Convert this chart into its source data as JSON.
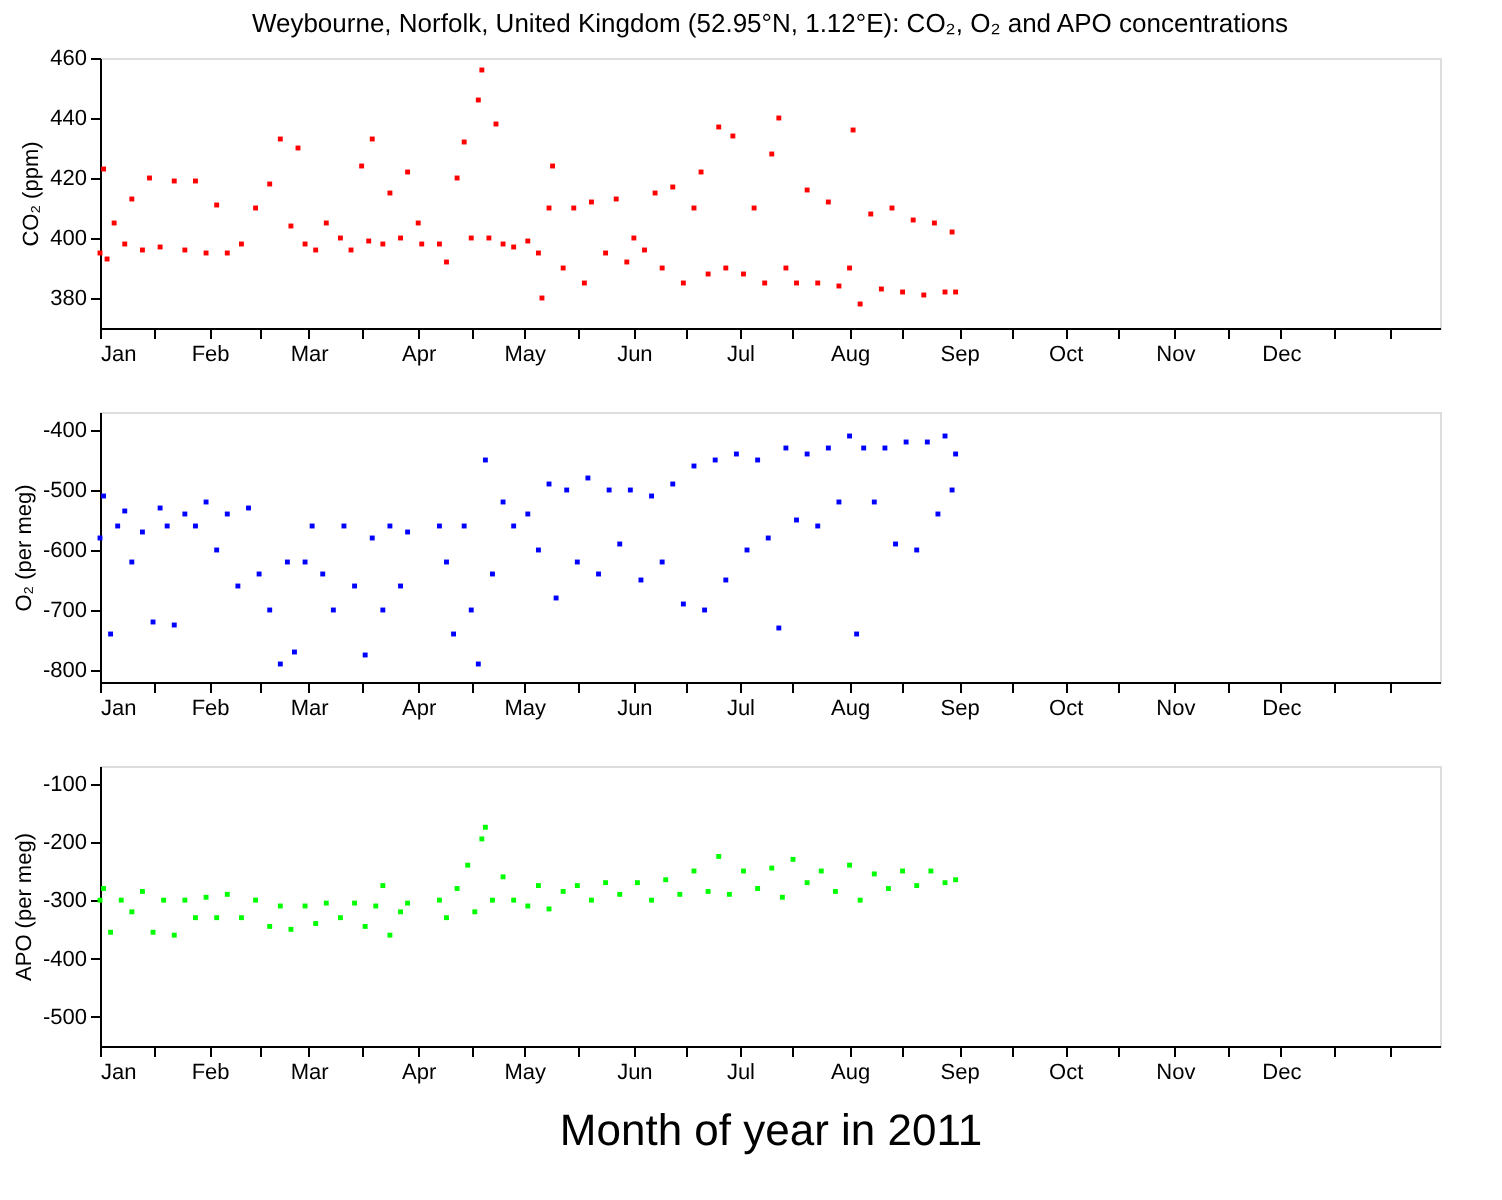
{
  "chart_data": [
    {
      "type": "scatter",
      "title": "Weybourne, Norfolk, United Kingdom (52.95°N, 1.12°E): CO₂, O₂ and APO concentrations",
      "ylabel": "CO₂ (ppm)",
      "marker": "square",
      "grid": false,
      "legend": false,
      "xlim": [
        "2011-01-01",
        "2012-01-15"
      ],
      "xticks": [
        {
          "value": "2011-01-01",
          "label": "Jan"
        },
        {
          "value": "2011-01-16",
          "label": null
        },
        {
          "value": "2011-02-01",
          "label": "Feb"
        },
        {
          "value": "2011-02-15",
          "label": null
        },
        {
          "value": "2011-03-01",
          "label": "Mar"
        },
        {
          "value": "2011-03-16",
          "label": null
        },
        {
          "value": "2011-04-01",
          "label": "Apr"
        },
        {
          "value": "2011-04-16",
          "label": null
        },
        {
          "value": "2011-05-01",
          "label": "May"
        },
        {
          "value": "2011-05-16",
          "label": null
        },
        {
          "value": "2011-06-01",
          "label": "Jun"
        },
        {
          "value": "2011-06-16",
          "label": null
        },
        {
          "value": "2011-07-01",
          "label": "Jul"
        },
        {
          "value": "2011-07-16",
          "label": null
        },
        {
          "value": "2011-08-01",
          "label": "Aug"
        },
        {
          "value": "2011-08-16",
          "label": null
        },
        {
          "value": "2011-09-01",
          "label": "Sep"
        },
        {
          "value": "2011-09-16",
          "label": null
        },
        {
          "value": "2011-10-01",
          "label": "Oct"
        },
        {
          "value": "2011-10-16",
          "label": null
        },
        {
          "value": "2011-11-01",
          "label": "Nov"
        },
        {
          "value": "2011-11-16",
          "label": null
        },
        {
          "value": "2011-12-01",
          "label": "Dec"
        },
        {
          "value": "2011-12-16",
          "label": null
        },
        {
          "value": "2012-01-01",
          "label": null
        }
      ],
      "ylim": [
        370,
        460
      ],
      "yticks": [
        380,
        400,
        420,
        440,
        460
      ],
      "series": [
        {
          "color": "#ff0000",
          "x": [
            "2011-01-01",
            "2011-01-02",
            "2011-01-03",
            "2011-01-05",
            "2011-01-08",
            "2011-01-10",
            "2011-01-13",
            "2011-01-15",
            "2011-01-18",
            "2011-01-22",
            "2011-01-25",
            "2011-01-28",
            "2011-01-31",
            "2011-02-03",
            "2011-02-06",
            "2011-02-10",
            "2011-02-14",
            "2011-02-18",
            "2011-02-21",
            "2011-02-24",
            "2011-02-26",
            "2011-02-28",
            "2011-03-03",
            "2011-03-06",
            "2011-03-10",
            "2011-03-13",
            "2011-03-16",
            "2011-03-18",
            "2011-03-19",
            "2011-03-22",
            "2011-03-24",
            "2011-03-27",
            "2011-03-29",
            "2011-04-01",
            "2011-04-02",
            "2011-04-07",
            "2011-04-09",
            "2011-04-12",
            "2011-04-14",
            "2011-04-16",
            "2011-04-18",
            "2011-04-19",
            "2011-04-21",
            "2011-04-23",
            "2011-04-25",
            "2011-04-28",
            "2011-05-02",
            "2011-05-05",
            "2011-05-06",
            "2011-05-08",
            "2011-05-09",
            "2011-05-12",
            "2011-05-15",
            "2011-05-18",
            "2011-05-20",
            "2011-05-24",
            "2011-05-27",
            "2011-05-30",
            "2011-06-01",
            "2011-06-04",
            "2011-06-07",
            "2011-06-09",
            "2011-06-12",
            "2011-06-15",
            "2011-06-18",
            "2011-06-20",
            "2011-06-22",
            "2011-06-25",
            "2011-06-27",
            "2011-06-29",
            "2011-07-02",
            "2011-07-05",
            "2011-07-08",
            "2011-07-10",
            "2011-07-12",
            "2011-07-14",
            "2011-07-17",
            "2011-07-20",
            "2011-07-23",
            "2011-07-26",
            "2011-07-29",
            "2011-08-01",
            "2011-08-02",
            "2011-08-04",
            "2011-08-07",
            "2011-08-10",
            "2011-08-13",
            "2011-08-16",
            "2011-08-19",
            "2011-08-22",
            "2011-08-25",
            "2011-08-28",
            "2011-08-30",
            "2011-08-31"
          ],
          "values": [
            395,
            423,
            393,
            405,
            398,
            413,
            396,
            420,
            397,
            419,
            396,
            419,
            395,
            411,
            395,
            398,
            410,
            418,
            433,
            404,
            430,
            398,
            396,
            405,
            400,
            396,
            424,
            399,
            433,
            398,
            415,
            400,
            422,
            405,
            398,
            398,
            392,
            420,
            432,
            400,
            446,
            456,
            400,
            438,
            398,
            397,
            399,
            395,
            380,
            410,
            424,
            390,
            410,
            385,
            412,
            395,
            413,
            392,
            400,
            396,
            415,
            390,
            417,
            385,
            410,
            422,
            388,
            437,
            390,
            434,
            388,
            410,
            385,
            428,
            440,
            390,
            385,
            416,
            385,
            412,
            384,
            390,
            436,
            378,
            408,
            383,
            410,
            382,
            406,
            381,
            405,
            382,
            402,
            382
          ]
        }
      ]
    },
    {
      "type": "scatter",
      "ylabel": "O₂ (per meg)",
      "marker": "square",
      "grid": false,
      "legend": false,
      "xlim": [
        "2011-01-01",
        "2012-01-15"
      ],
      "xticks": [
        {
          "value": "2011-01-01",
          "label": "Jan"
        },
        {
          "value": "2011-01-16",
          "label": null
        },
        {
          "value": "2011-02-01",
          "label": "Feb"
        },
        {
          "value": "2011-02-15",
          "label": null
        },
        {
          "value": "2011-03-01",
          "label": "Mar"
        },
        {
          "value": "2011-03-16",
          "label": null
        },
        {
          "value": "2011-04-01",
          "label": "Apr"
        },
        {
          "value": "2011-04-16",
          "label": null
        },
        {
          "value": "2011-05-01",
          "label": "May"
        },
        {
          "value": "2011-05-16",
          "label": null
        },
        {
          "value": "2011-06-01",
          "label": "Jun"
        },
        {
          "value": "2011-06-16",
          "label": null
        },
        {
          "value": "2011-07-01",
          "label": "Jul"
        },
        {
          "value": "2011-07-16",
          "label": null
        },
        {
          "value": "2011-08-01",
          "label": "Aug"
        },
        {
          "value": "2011-08-16",
          "label": null
        },
        {
          "value": "2011-09-01",
          "label": "Sep"
        },
        {
          "value": "2011-09-16",
          "label": null
        },
        {
          "value": "2011-10-01",
          "label": "Oct"
        },
        {
          "value": "2011-10-16",
          "label": null
        },
        {
          "value": "2011-11-01",
          "label": "Nov"
        },
        {
          "value": "2011-11-16",
          "label": null
        },
        {
          "value": "2011-12-01",
          "label": "Dec"
        },
        {
          "value": "2011-12-16",
          "label": null
        },
        {
          "value": "2012-01-01",
          "label": null
        }
      ],
      "ylim": [
        -820,
        -370
      ],
      "yticks": [
        -800,
        -700,
        -600,
        -500,
        -400
      ],
      "series": [
        {
          "color": "#0000ff",
          "x": [
            "2011-01-01",
            "2011-01-02",
            "2011-01-04",
            "2011-01-06",
            "2011-01-08",
            "2011-01-10",
            "2011-01-13",
            "2011-01-16",
            "2011-01-18",
            "2011-01-20",
            "2011-01-22",
            "2011-01-25",
            "2011-01-28",
            "2011-01-31",
            "2011-02-03",
            "2011-02-06",
            "2011-02-09",
            "2011-02-12",
            "2011-02-15",
            "2011-02-18",
            "2011-02-21",
            "2011-02-23",
            "2011-02-25",
            "2011-02-28",
            "2011-03-02",
            "2011-03-05",
            "2011-03-08",
            "2011-03-11",
            "2011-03-14",
            "2011-03-17",
            "2011-03-19",
            "2011-03-22",
            "2011-03-24",
            "2011-03-27",
            "2011-03-29",
            "2011-04-07",
            "2011-04-09",
            "2011-04-11",
            "2011-04-14",
            "2011-04-16",
            "2011-04-18",
            "2011-04-20",
            "2011-04-22",
            "2011-04-25",
            "2011-04-28",
            "2011-05-02",
            "2011-05-05",
            "2011-05-08",
            "2011-05-10",
            "2011-05-13",
            "2011-05-16",
            "2011-05-19",
            "2011-05-22",
            "2011-05-25",
            "2011-05-28",
            "2011-05-31",
            "2011-06-03",
            "2011-06-06",
            "2011-06-09",
            "2011-06-12",
            "2011-06-15",
            "2011-06-18",
            "2011-06-21",
            "2011-06-24",
            "2011-06-27",
            "2011-06-30",
            "2011-07-03",
            "2011-07-06",
            "2011-07-09",
            "2011-07-12",
            "2011-07-14",
            "2011-07-17",
            "2011-07-20",
            "2011-07-23",
            "2011-07-26",
            "2011-07-29",
            "2011-08-01",
            "2011-08-03",
            "2011-08-05",
            "2011-08-08",
            "2011-08-11",
            "2011-08-14",
            "2011-08-17",
            "2011-08-20",
            "2011-08-23",
            "2011-08-26",
            "2011-08-28",
            "2011-08-30",
            "2011-08-31"
          ],
          "values": [
            -580,
            -510,
            -740,
            -560,
            -535,
            -620,
            -570,
            -720,
            -530,
            -560,
            -725,
            -540,
            -560,
            -520,
            -600,
            -540,
            -660,
            -530,
            -640,
            -700,
            -790,
            -620,
            -770,
            -620,
            -560,
            -640,
            -700,
            -560,
            -660,
            -775,
            -580,
            -700,
            -560,
            -660,
            -570,
            -560,
            -620,
            -740,
            -560,
            -700,
            -790,
            -450,
            -640,
            -520,
            -560,
            -540,
            -600,
            -490,
            -680,
            -500,
            -620,
            -480,
            -640,
            -500,
            -590,
            -500,
            -650,
            -510,
            -620,
            -490,
            -690,
            -460,
            -700,
            -450,
            -650,
            -440,
            -600,
            -450,
            -580,
            -730,
            -430,
            -550,
            -440,
            -560,
            -430,
            -520,
            -410,
            -740,
            -430,
            -520,
            -430,
            -590,
            -420,
            -600,
            -420,
            -540,
            -410,
            -500,
            -440
          ]
        }
      ]
    },
    {
      "type": "scatter",
      "ylabel": "APO (per meg)",
      "xlabel": "Month of year in 2011",
      "marker": "square",
      "grid": false,
      "legend": false,
      "xlim": [
        "2011-01-01",
        "2012-01-15"
      ],
      "xticks": [
        {
          "value": "2011-01-01",
          "label": "Jan"
        },
        {
          "value": "2011-01-16",
          "label": null
        },
        {
          "value": "2011-02-01",
          "label": "Feb"
        },
        {
          "value": "2011-02-15",
          "label": null
        },
        {
          "value": "2011-03-01",
          "label": "Mar"
        },
        {
          "value": "2011-03-16",
          "label": null
        },
        {
          "value": "2011-04-01",
          "label": "Apr"
        },
        {
          "value": "2011-04-16",
          "label": null
        },
        {
          "value": "2011-05-01",
          "label": "May"
        },
        {
          "value": "2011-05-16",
          "label": null
        },
        {
          "value": "2011-06-01",
          "label": "Jun"
        },
        {
          "value": "2011-06-16",
          "label": null
        },
        {
          "value": "2011-07-01",
          "label": "Jul"
        },
        {
          "value": "2011-07-16",
          "label": null
        },
        {
          "value": "2011-08-01",
          "label": "Aug"
        },
        {
          "value": "2011-08-16",
          "label": null
        },
        {
          "value": "2011-09-01",
          "label": "Sep"
        },
        {
          "value": "2011-09-16",
          "label": null
        },
        {
          "value": "2011-10-01",
          "label": "Oct"
        },
        {
          "value": "2011-10-16",
          "label": null
        },
        {
          "value": "2011-11-01",
          "label": "Nov"
        },
        {
          "value": "2011-11-16",
          "label": null
        },
        {
          "value": "2011-12-01",
          "label": "Dec"
        },
        {
          "value": "2011-12-16",
          "label": null
        },
        {
          "value": "2012-01-01",
          "label": null
        }
      ],
      "ylim": [
        -550,
        -70
      ],
      "yticks": [
        -500,
        -400,
        -300,
        -200,
        -100
      ],
      "series": [
        {
          "color": "#00ff00",
          "x": [
            "2011-01-01",
            "2011-01-02",
            "2011-01-04",
            "2011-01-07",
            "2011-01-10",
            "2011-01-13",
            "2011-01-16",
            "2011-01-19",
            "2011-01-22",
            "2011-01-25",
            "2011-01-28",
            "2011-01-31",
            "2011-02-03",
            "2011-02-06",
            "2011-02-10",
            "2011-02-14",
            "2011-02-18",
            "2011-02-21",
            "2011-02-24",
            "2011-02-28",
            "2011-03-03",
            "2011-03-06",
            "2011-03-10",
            "2011-03-14",
            "2011-03-17",
            "2011-03-20",
            "2011-03-22",
            "2011-03-24",
            "2011-03-27",
            "2011-03-29",
            "2011-04-07",
            "2011-04-09",
            "2011-04-12",
            "2011-04-15",
            "2011-04-17",
            "2011-04-19",
            "2011-04-20",
            "2011-04-22",
            "2011-04-25",
            "2011-04-28",
            "2011-05-02",
            "2011-05-05",
            "2011-05-08",
            "2011-05-12",
            "2011-05-16",
            "2011-05-20",
            "2011-05-24",
            "2011-05-28",
            "2011-06-02",
            "2011-06-06",
            "2011-06-10",
            "2011-06-14",
            "2011-06-18",
            "2011-06-22",
            "2011-06-25",
            "2011-06-28",
            "2011-07-02",
            "2011-07-06",
            "2011-07-10",
            "2011-07-13",
            "2011-07-16",
            "2011-07-20",
            "2011-07-24",
            "2011-07-28",
            "2011-08-01",
            "2011-08-04",
            "2011-08-08",
            "2011-08-12",
            "2011-08-16",
            "2011-08-20",
            "2011-08-24",
            "2011-08-28",
            "2011-08-31"
          ],
          "values": [
            -300,
            -280,
            -355,
            -300,
            -320,
            -285,
            -355,
            -300,
            -360,
            -300,
            -330,
            -295,
            -330,
            -290,
            -330,
            -300,
            -345,
            -310,
            -350,
            -310,
            -340,
            -305,
            -330,
            -305,
            -345,
            -310,
            -275,
            -360,
            -320,
            -305,
            -300,
            -330,
            -280,
            -240,
            -320,
            -195,
            -175,
            -300,
            -260,
            -300,
            -310,
            -275,
            -315,
            -285,
            -275,
            -300,
            -270,
            -290,
            -270,
            -300,
            -265,
            -290,
            -250,
            -285,
            -225,
            -290,
            -250,
            -280,
            -245,
            -295,
            -230,
            -270,
            -250,
            -285,
            -240,
            -300,
            -255,
            -280,
            -250,
            -275,
            -250,
            -270,
            -265
          ]
        }
      ]
    }
  ]
}
